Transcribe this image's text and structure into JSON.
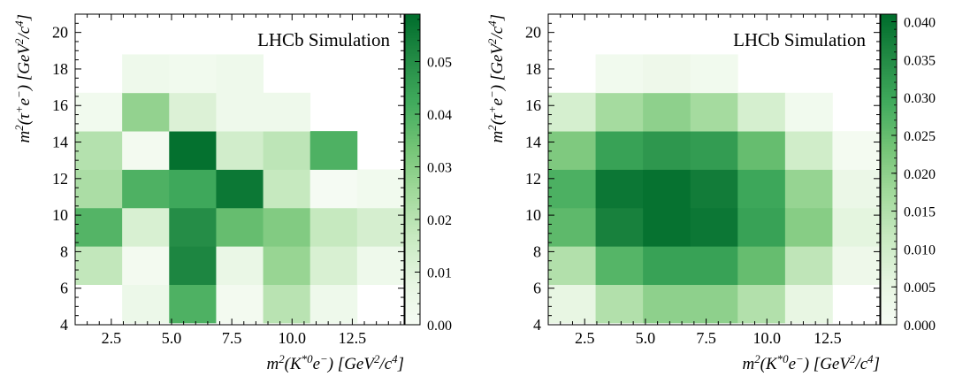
{
  "chart_data": [
    {
      "type": "heatmap",
      "title": "",
      "annotation": "LHCb Simulation",
      "x_bin_edges": [
        1.0,
        2.95,
        4.9,
        6.85,
        8.8,
        10.75,
        12.7,
        14.65
      ],
      "y_bin_edges": [
        4.1,
        6.2,
        8.3,
        10.4,
        12.5,
        14.6,
        16.7,
        18.8
      ],
      "xlim": [
        1.0,
        14.65
      ],
      "ylim": [
        4,
        21
      ],
      "x_ticks": [
        2.5,
        5.0,
        7.5,
        10.0,
        12.5
      ],
      "x_tick_labels": [
        "2.5",
        "5.0",
        "7.5",
        "10.0",
        "12.5"
      ],
      "y_ticks": [
        4,
        6,
        8,
        10,
        12,
        14,
        16,
        18,
        20
      ],
      "y_tick_labels": [
        "4",
        "6",
        "8",
        "10",
        "12",
        "14",
        "16",
        "18",
        "20"
      ],
      "xlabel": {
        "base": "m",
        "sup": "2",
        "rest": "(K",
        "sup2": "*0",
        "rest2": "e",
        "sup3": "−",
        "rest3": ") [GeV",
        "sup4": "2",
        "rest4": "/c",
        "sup5": "4",
        "rest5": "]"
      },
      "ylabel": {
        "base": "m",
        "sup": "2",
        "rest": "(τ",
        "sup2": "+",
        "rest2": "e",
        "sup3": "−",
        "rest3": ") [GeV",
        "sup4": "2",
        "rest4": "/c",
        "sup5": "4",
        "rest5": "]"
      },
      "values": [
        [
          0.0,
          0.005,
          0.04,
          0.002,
          0.02,
          0.004,
          0.0
        ],
        [
          0.018,
          0.002,
          0.052,
          0.006,
          0.027,
          0.012,
          0.004
        ],
        [
          0.039,
          0.012,
          0.05,
          0.036,
          0.031,
          0.017,
          0.013
        ],
        [
          0.023,
          0.04,
          0.043,
          0.056,
          0.017,
          0.001,
          0.003
        ],
        [
          0.021,
          0.002,
          0.058,
          0.014,
          0.019,
          0.04,
          0.0
        ],
        [
          0.003,
          0.028,
          0.011,
          0.004,
          0.004,
          0.0,
          0.0
        ],
        [
          0.0,
          0.004,
          0.003,
          0.004,
          0.0,
          0.0,
          0.0
        ]
      ],
      "colorbar": {
        "min": 0.0,
        "max": 0.059,
        "ticks": [
          0.0,
          0.01,
          0.02,
          0.03,
          0.04,
          0.05
        ],
        "tick_labels": [
          "0.00",
          "0.01",
          "0.02",
          "0.03",
          "0.04",
          "0.05"
        ]
      },
      "cmap": [
        "#f7fcf5",
        "#e5f5e0",
        "#c7e9c0",
        "#a1d99b",
        "#74c476",
        "#41ab5d",
        "#238b45",
        "#006d2c"
      ]
    },
    {
      "type": "heatmap",
      "title": "",
      "annotation": "LHCb Simulation",
      "x_bin_edges": [
        1.0,
        2.95,
        4.9,
        6.85,
        8.8,
        10.75,
        12.7,
        14.65
      ],
      "y_bin_edges": [
        4.1,
        6.2,
        8.3,
        10.4,
        12.5,
        14.6,
        16.7,
        18.8
      ],
      "xlim": [
        1.0,
        14.65
      ],
      "ylim": [
        4,
        21
      ],
      "x_ticks": [
        2.5,
        5.0,
        7.5,
        10.0,
        12.5
      ],
      "x_tick_labels": [
        "2.5",
        "5.0",
        "7.5",
        "10.0",
        "12.5"
      ],
      "y_ticks": [
        4,
        6,
        8,
        10,
        12,
        14,
        16,
        18,
        20
      ],
      "y_tick_labels": [
        "4",
        "6",
        "8",
        "10",
        "12",
        "14",
        "16",
        "18",
        "20"
      ],
      "xlabel": {
        "base": "m",
        "sup": "2",
        "rest": "(K",
        "sup2": "*0",
        "rest2": "e",
        "sup3": "−",
        "rest3": ") [GeV",
        "sup4": "2",
        "rest4": "/c",
        "sup5": "4",
        "rest5": "]"
      },
      "ylabel": {
        "base": "m",
        "sup": "2",
        "rest": "(τ",
        "sup2": "+",
        "rest2": "e",
        "sup3": "−",
        "rest3": ") [GeV",
        "sup4": "2",
        "rest4": "/c",
        "sup5": "4",
        "rest5": "]"
      },
      "values": [
        [
          0.005,
          0.015,
          0.02,
          0.02,
          0.015,
          0.005,
          0.0
        ],
        [
          0.015,
          0.027,
          0.031,
          0.031,
          0.025,
          0.013,
          0.003
        ],
        [
          0.026,
          0.037,
          0.04,
          0.039,
          0.031,
          0.021,
          0.006
        ],
        [
          0.028,
          0.039,
          0.04,
          0.038,
          0.03,
          0.019,
          0.004
        ],
        [
          0.022,
          0.031,
          0.033,
          0.032,
          0.025,
          0.01,
          0.001
        ],
        [
          0.009,
          0.017,
          0.02,
          0.017,
          0.009,
          0.002,
          0.0
        ],
        [
          0.0,
          0.002,
          0.003,
          0.002,
          0.0,
          0.0,
          0.0
        ]
      ],
      "colorbar": {
        "min": 0.0,
        "max": 0.041,
        "ticks": [
          0.0,
          0.005,
          0.01,
          0.015,
          0.02,
          0.025,
          0.03,
          0.035,
          0.04
        ],
        "tick_labels": [
          "0.000",
          "0.005",
          "0.010",
          "0.015",
          "0.020",
          "0.025",
          "0.030",
          "0.035",
          "0.040"
        ]
      },
      "cmap": [
        "#f7fcf5",
        "#e5f5e0",
        "#c7e9c0",
        "#a1d99b",
        "#74c476",
        "#41ab5d",
        "#238b45",
        "#006d2c"
      ]
    }
  ]
}
